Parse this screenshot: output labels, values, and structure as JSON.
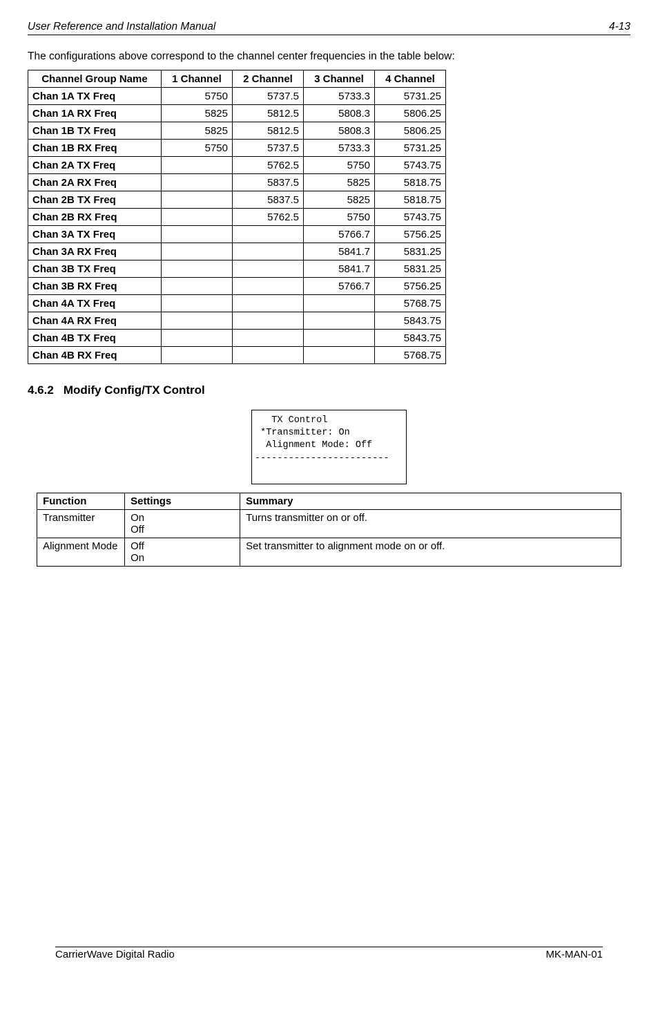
{
  "header": {
    "left": "User Reference and Installation Manual",
    "right": "4-13"
  },
  "intro": "The configurations above correspond to the channel center frequencies in the table below:",
  "freq_table": {
    "columns": [
      "Channel Group Name",
      "1 Channel",
      "2 Channel",
      "3 Channel",
      "4 Channel"
    ],
    "rows": [
      [
        "Chan 1A TX Freq",
        "5750",
        "5737.5",
        "5733.3",
        "5731.25"
      ],
      [
        "Chan 1A RX Freq",
        "5825",
        "5812.5",
        "5808.3",
        "5806.25"
      ],
      [
        "Chan 1B TX Freq",
        "5825",
        "5812.5",
        "5808.3",
        "5806.25"
      ],
      [
        "Chan 1B RX Freq",
        "5750",
        "5737.5",
        "5733.3",
        "5731.25"
      ],
      [
        "Chan 2A TX Freq",
        "",
        "5762.5",
        "5750",
        "5743.75"
      ],
      [
        "Chan 2A RX Freq",
        "",
        "5837.5",
        "5825",
        "5818.75"
      ],
      [
        "Chan 2B TX Freq",
        "",
        "5837.5",
        "5825",
        "5818.75"
      ],
      [
        "Chan 2B RX Freq",
        "",
        "5762.5",
        "5750",
        "5743.75"
      ],
      [
        "Chan 3A TX Freq",
        "",
        "",
        "5766.7",
        "5756.25"
      ],
      [
        "Chan 3A RX Freq",
        "",
        "",
        "5841.7",
        "5831.25"
      ],
      [
        "Chan 3B TX Freq",
        "",
        "",
        "5841.7",
        "5831.25"
      ],
      [
        "Chan 3B RX Freq",
        "",
        "",
        "5766.7",
        "5756.25"
      ],
      [
        "Chan 4A TX Freq",
        "",
        "",
        "",
        "5768.75"
      ],
      [
        "Chan 4A RX Freq",
        "",
        "",
        "",
        "5843.75"
      ],
      [
        "Chan 4B TX Freq",
        "",
        "",
        "",
        "5843.75"
      ],
      [
        "Chan 4B RX Freq",
        "",
        "",
        "",
        "5768.75"
      ]
    ]
  },
  "section": {
    "number": "4.6.2",
    "title": "Modify Config/TX Control"
  },
  "lcd": {
    "line1": "   TX Control",
    "line2": " *Transmitter: On",
    "line3": "  Alignment Mode: Off",
    "line4": "------------------------"
  },
  "func_table": {
    "columns": [
      "Function",
      "Settings",
      "Summary"
    ],
    "rows": [
      {
        "function": "Transmitter",
        "settings": [
          "On",
          "Off"
        ],
        "summary": "Turns transmitter on or off."
      },
      {
        "function": "Alignment Mode",
        "settings": [
          "Off",
          "On"
        ],
        "summary": "Set transmitter to alignment mode on or off."
      }
    ]
  },
  "footer": {
    "left": "CarrierWave Digital Radio",
    "right": "MK-MAN-01"
  }
}
